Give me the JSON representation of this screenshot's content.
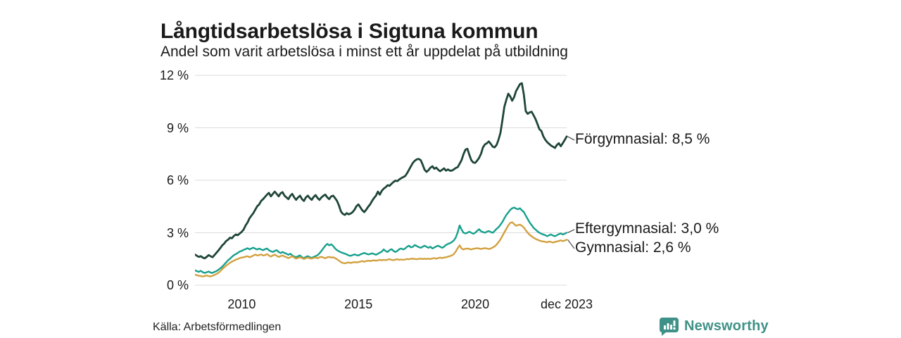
{
  "header": {
    "title": "Långtidsarbetslösa i Sigtuna kommun",
    "subtitle": "Andel som varit arbetslösa i minst ett år uppdelat på utbildning"
  },
  "footer": {
    "source": "Källa: Arbetsförmedlingen",
    "brand": {
      "name": "Newsworthy",
      "icon": "bar-chart-badge-icon",
      "color": "#3f9187"
    }
  },
  "chart_data": {
    "type": "line",
    "title": "Långtidsarbetslösa i Sigtuna kommun",
    "subtitle": "Andel som varit arbetslösa i minst ett år uppdelat på utbildning",
    "x_start": "2008-01",
    "x_end": "2023-12",
    "x_interval": "monthly",
    "unit": "%",
    "ylim": [
      0,
      12.4
    ],
    "grid": "horizontal",
    "grid_color": "#dcdcdc",
    "legend_position": "right-of-line-end",
    "y_ticks": [
      {
        "value": 0,
        "label": "0 %"
      },
      {
        "value": 3,
        "label": "3 %"
      },
      {
        "value": 6,
        "label": "6 %"
      },
      {
        "value": 9,
        "label": "9 %"
      },
      {
        "value": 12,
        "label": "12 %"
      }
    ],
    "x_ticks": [
      {
        "month_index": 24,
        "label": "2010"
      },
      {
        "month_index": 84,
        "label": "2015"
      },
      {
        "month_index": 144,
        "label": "2020"
      },
      {
        "month_index": 191,
        "label": "dec 2023"
      }
    ],
    "series": [
      {
        "name": "Förgymnasial",
        "label": "Förgymnasial: 8,5 %",
        "latest_value": 8.5,
        "color": "#1e4637",
        "values": [
          1.75,
          1.68,
          1.62,
          1.66,
          1.58,
          1.54,
          1.62,
          1.72,
          1.66,
          1.6,
          1.72,
          1.85,
          1.98,
          2.12,
          2.28,
          2.38,
          2.52,
          2.6,
          2.72,
          2.68,
          2.82,
          2.9,
          2.86,
          2.96,
          3.05,
          3.18,
          3.42,
          3.58,
          3.82,
          3.98,
          4.12,
          4.32,
          4.52,
          4.62,
          4.82,
          4.92,
          5.05,
          5.18,
          5.28,
          5.08,
          5.22,
          5.35,
          5.22,
          5.08,
          5.25,
          5.32,
          5.12,
          5.02,
          4.92,
          5.12,
          5.22,
          5.02,
          4.88,
          5.02,
          5.12,
          4.92,
          4.82,
          5.02,
          5.12,
          4.98,
          4.88,
          5.05,
          5.15,
          4.98,
          4.88,
          5.02,
          5.12,
          5.18,
          5.02,
          4.92,
          5.08,
          5.12,
          4.98,
          4.82,
          4.55,
          4.22,
          4.08,
          4.02,
          4.12,
          4.05,
          4.1,
          4.18,
          4.32,
          4.52,
          4.62,
          4.45,
          4.28,
          4.18,
          4.32,
          4.48,
          4.62,
          4.82,
          4.98,
          5.12,
          5.35,
          5.18,
          5.4,
          5.52,
          5.6,
          5.72,
          5.68,
          5.8,
          5.9,
          5.98,
          5.95,
          6.05,
          6.12,
          6.18,
          6.24,
          6.4,
          6.6,
          6.8,
          7.0,
          7.12,
          7.2,
          7.22,
          7.15,
          6.9,
          6.6,
          6.48,
          6.58,
          6.72,
          6.8,
          6.66,
          6.72,
          6.6,
          6.52,
          6.6,
          6.68,
          6.55,
          6.62,
          6.55,
          6.55,
          6.62,
          6.7,
          6.75,
          6.95,
          7.15,
          7.5,
          7.75,
          7.8,
          7.45,
          7.15,
          7.02,
          7.0,
          7.12,
          7.28,
          7.52,
          7.88,
          8.05,
          8.12,
          8.22,
          8.08,
          7.92,
          7.88,
          8.02,
          8.32,
          8.72,
          9.45,
          10.2,
          10.6,
          10.95,
          10.8,
          10.55,
          10.75,
          11.1,
          11.3,
          11.5,
          11.55,
          10.9,
          9.95,
          9.8,
          9.88,
          9.92,
          9.72,
          9.5,
          9.22,
          8.92,
          8.82,
          8.52,
          8.32,
          8.18,
          8.08,
          7.98,
          7.92,
          7.85,
          8.02,
          8.12,
          7.95,
          8.12,
          8.3,
          8.5
        ]
      },
      {
        "name": "Eftergymnasial",
        "label": "Eftergymnasial: 3,0 %",
        "latest_value": 3.0,
        "color": "#16a08c",
        "values": [
          0.85,
          0.8,
          0.76,
          0.82,
          0.74,
          0.7,
          0.74,
          0.78,
          0.72,
          0.7,
          0.76,
          0.8,
          0.88,
          0.96,
          1.06,
          1.18,
          1.3,
          1.42,
          1.52,
          1.62,
          1.72,
          1.78,
          1.85,
          1.92,
          1.96,
          2.02,
          2.06,
          2.12,
          2.05,
          2.1,
          2.15,
          2.08,
          2.04,
          2.1,
          2.04,
          2.0,
          2.06,
          2.1,
          2.0,
          1.94,
          1.9,
          1.96,
          2.0,
          1.9,
          1.84,
          1.9,
          1.84,
          1.8,
          1.74,
          1.8,
          1.7,
          1.64,
          1.6,
          1.66,
          1.7,
          1.6,
          1.55,
          1.62,
          1.66,
          1.6,
          1.56,
          1.62,
          1.66,
          1.72,
          1.82,
          1.96,
          2.12,
          2.26,
          2.36,
          2.28,
          2.34,
          2.24,
          2.1,
          2.0,
          1.94,
          1.88,
          1.84,
          1.8,
          1.76,
          1.7,
          1.68,
          1.72,
          1.76,
          1.72,
          1.7,
          1.76,
          1.8,
          1.85,
          1.8,
          1.76,
          1.78,
          1.82,
          1.78,
          1.74,
          1.8,
          1.86,
          1.92,
          2.05,
          1.95,
          1.9,
          2.0,
          2.06,
          1.96,
          1.9,
          1.96,
          2.06,
          2.1,
          2.04,
          2.1,
          2.2,
          2.26,
          2.16,
          2.2,
          2.3,
          2.24,
          2.18,
          2.14,
          2.2,
          2.26,
          2.2,
          2.14,
          2.2,
          2.1,
          2.16,
          2.22,
          2.26,
          2.2,
          2.14,
          2.2,
          2.3,
          2.36,
          2.4,
          2.46,
          2.56,
          2.72,
          3.02,
          3.42,
          3.18,
          3.0,
          2.96,
          3.0,
          3.06,
          3.0,
          2.94,
          3.0,
          3.1,
          3.2,
          3.08,
          3.04,
          3.0,
          3.06,
          3.1,
          3.04,
          3.0,
          3.1,
          3.22,
          3.32,
          3.46,
          3.62,
          3.82,
          4.02,
          4.16,
          4.3,
          4.4,
          4.44,
          4.38,
          4.34,
          4.4,
          4.28,
          4.18,
          3.98,
          3.78,
          3.58,
          3.44,
          3.28,
          3.18,
          3.08,
          3.0,
          2.94,
          2.9,
          2.86,
          2.8,
          2.86,
          2.9,
          2.84,
          2.8,
          2.86,
          2.92,
          2.96,
          2.9,
          2.94,
          3.0
        ]
      },
      {
        "name": "Gymnasial",
        "label": "Gymnasial: 2,6 %",
        "latest_value": 2.6,
        "color": "#d2a13f",
        "values": [
          0.6,
          0.57,
          0.54,
          0.52,
          0.5,
          0.53,
          0.55,
          0.52,
          0.5,
          0.54,
          0.58,
          0.64,
          0.7,
          0.8,
          0.92,
          1.02,
          1.12,
          1.2,
          1.28,
          1.35,
          1.4,
          1.46,
          1.5,
          1.55,
          1.58,
          1.6,
          1.63,
          1.66,
          1.6,
          1.64,
          1.7,
          1.75,
          1.7,
          1.72,
          1.76,
          1.7,
          1.72,
          1.78,
          1.7,
          1.64,
          1.7,
          1.75,
          1.68,
          1.62,
          1.66,
          1.7,
          1.64,
          1.6,
          1.55,
          1.6,
          1.65,
          1.58,
          1.52,
          1.56,
          1.6,
          1.55,
          1.5,
          1.55,
          1.58,
          1.54,
          1.52,
          1.56,
          1.58,
          1.54,
          1.6,
          1.62,
          1.58,
          1.54,
          1.6,
          1.62,
          1.58,
          1.6,
          1.55,
          1.48,
          1.4,
          1.32,
          1.27,
          1.25,
          1.28,
          1.3,
          1.27,
          1.3,
          1.32,
          1.3,
          1.32,
          1.35,
          1.38,
          1.34,
          1.38,
          1.4,
          1.38,
          1.4,
          1.42,
          1.4,
          1.42,
          1.45,
          1.42,
          1.45,
          1.43,
          1.46,
          1.48,
          1.45,
          1.43,
          1.46,
          1.48,
          1.45,
          1.47,
          1.45,
          1.47,
          1.5,
          1.48,
          1.51,
          1.52,
          1.5,
          1.48,
          1.51,
          1.52,
          1.5,
          1.52,
          1.5,
          1.52,
          1.5,
          1.53,
          1.55,
          1.52,
          1.55,
          1.58,
          1.55,
          1.58,
          1.6,
          1.63,
          1.66,
          1.7,
          1.78,
          1.92,
          2.12,
          2.28,
          2.1,
          2.04,
          2.08,
          2.1,
          2.07,
          2.04,
          2.08,
          2.1,
          2.12,
          2.1,
          2.07,
          2.1,
          2.12,
          2.1,
          2.07,
          2.1,
          2.16,
          2.22,
          2.32,
          2.46,
          2.62,
          2.82,
          3.02,
          3.22,
          3.42,
          3.56,
          3.6,
          3.5,
          3.4,
          3.44,
          3.46,
          3.4,
          3.3,
          3.14,
          3.0,
          2.88,
          2.8,
          2.72,
          2.65,
          2.6,
          2.55,
          2.52,
          2.5,
          2.48,
          2.45,
          2.5,
          2.47,
          2.44,
          2.47,
          2.5,
          2.53,
          2.56,
          2.52,
          2.55,
          2.6
        ]
      }
    ]
  }
}
